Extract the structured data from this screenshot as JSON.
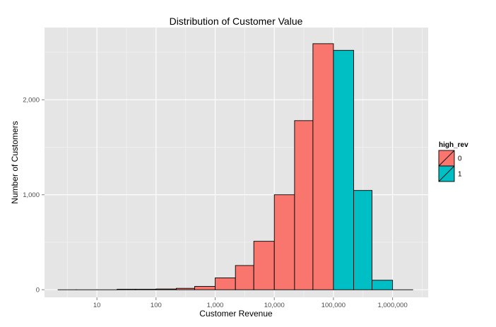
{
  "chart_data": {
    "type": "bar",
    "title": "Distribution of Customer Value",
    "xlabel": "Customer Revenue",
    "ylabel": "Number of Customers",
    "x_scale": "log10",
    "xlim": [
      1.3,
      4000000
    ],
    "ylim": [
      -80,
      2760
    ],
    "x_ticks": [
      {
        "value": 10,
        "label": "10"
      },
      {
        "value": 100,
        "label": "100"
      },
      {
        "value": 1000,
        "label": "1,000"
      },
      {
        "value": 10000,
        "label": "10,000"
      },
      {
        "value": 100000,
        "label": "100,000"
      },
      {
        "value": 1000000,
        "label": "1,000,000"
      }
    ],
    "y_ticks": [
      {
        "value": 0,
        "label": "0"
      },
      {
        "value": 1000,
        "label": "1,000"
      },
      {
        "value": 2000,
        "label": "2,000"
      }
    ],
    "bins": [
      {
        "from": 2.2,
        "to": 4.5,
        "count": 0,
        "group": "0"
      },
      {
        "from": 4.5,
        "to": 10,
        "count": 0,
        "group": "0"
      },
      {
        "from": 10,
        "to": 22,
        "count": 0,
        "group": "0"
      },
      {
        "from": 22,
        "to": 45,
        "count": 5,
        "group": "0"
      },
      {
        "from": 45,
        "to": 100,
        "count": 5,
        "group": "0"
      },
      {
        "from": 100,
        "to": 220,
        "count": 8,
        "group": "0"
      },
      {
        "from": 220,
        "to": 450,
        "count": 15,
        "group": "0"
      },
      {
        "from": 450,
        "to": 1000,
        "count": 35,
        "group": "0"
      },
      {
        "from": 1000,
        "to": 2200,
        "count": 125,
        "group": "0"
      },
      {
        "from": 2200,
        "to": 4500,
        "count": 255,
        "group": "0"
      },
      {
        "from": 4500,
        "to": 10000,
        "count": 510,
        "group": "0"
      },
      {
        "from": 10000,
        "to": 22000,
        "count": 1000,
        "group": "0"
      },
      {
        "from": 22000,
        "to": 45000,
        "count": 1780,
        "group": "0"
      },
      {
        "from": 45000,
        "to": 100000,
        "count": 2590,
        "group": "0"
      },
      {
        "from": 100000,
        "to": 220000,
        "count": 2520,
        "group": "1"
      },
      {
        "from": 220000,
        "to": 450000,
        "count": 1045,
        "group": "1"
      },
      {
        "from": 450000,
        "to": 1000000,
        "count": 100,
        "group": "1"
      },
      {
        "from": 1000000,
        "to": 2200000,
        "count": 0,
        "group": "1"
      }
    ],
    "legend": {
      "title": "high_rev",
      "position": "right",
      "entries": [
        {
          "label": "0",
          "color": "#F8766D"
        },
        {
          "label": "1",
          "color": "#00BFC4"
        }
      ]
    },
    "grid": true,
    "panel_background": "#E5E5E5",
    "grid_color": "#FFFFFF",
    "grid_minor_color": "#F2F2F2",
    "bar_outline_color": "#000000"
  }
}
